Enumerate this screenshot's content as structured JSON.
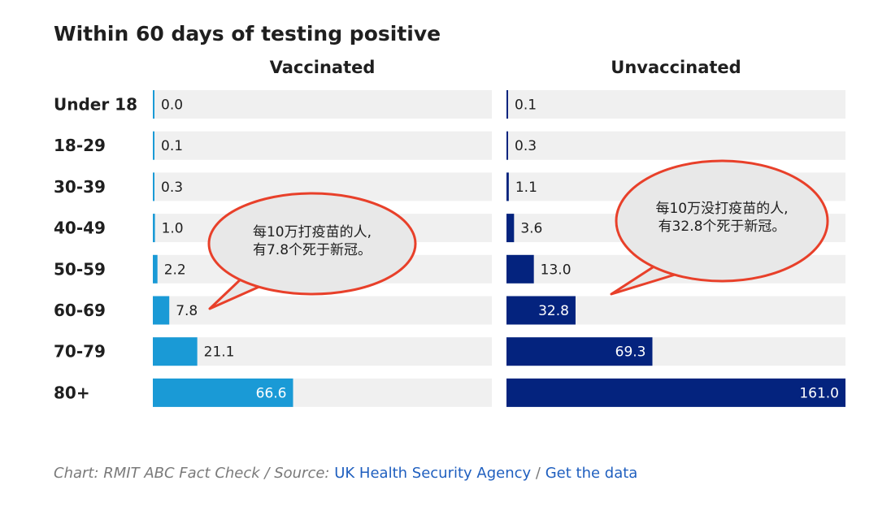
{
  "chart_data": {
    "type": "bar",
    "orientation": "horizontal",
    "title": "Within 60 days of testing positive",
    "categories": [
      "Under 18",
      "18-29",
      "30-39",
      "40-49",
      "50-59",
      "60-69",
      "70-79",
      "80+"
    ],
    "series": [
      {
        "name": "Vaccinated",
        "values": [
          0.0,
          0.1,
          0.3,
          1.0,
          2.2,
          7.8,
          21.1,
          66.6
        ],
        "labels": [
          "0.0",
          "0.1",
          "0.3",
          "1.0",
          "2.2",
          "7.8",
          "21.1",
          "66.6"
        ],
        "color": "#1a9ad6"
      },
      {
        "name": "Unvaccinated",
        "values": [
          0.1,
          0.3,
          1.1,
          3.6,
          13.0,
          32.8,
          69.3,
          161.0
        ],
        "labels": [
          "0.1",
          "0.3",
          "1.1",
          "3.6",
          "13.0",
          "32.8",
          "69.3",
          "161.0"
        ],
        "color": "#04237e"
      }
    ],
    "xlim": [
      0,
      161
    ],
    "background_bar_color": "#f0f0f0",
    "annotations": [
      {
        "panel": "Vaccinated",
        "category": "60-69",
        "lines": [
          "每10万打疫苗的人,",
          "有7.8个死于新冠。"
        ]
      },
      {
        "panel": "Unvaccinated",
        "category": "60-69",
        "lines": [
          "每10万没打疫苗的人,",
          "有32.8个死于新冠。"
        ]
      }
    ],
    "bubble_style": {
      "fill": "#e8e8e8",
      "stroke": "#e8402a"
    }
  },
  "footer": {
    "prefix": "Chart: RMIT ABC Fact Check / Source:",
    "source_link": "UK Health Security Agency",
    "separator": "/",
    "data_link": "Get the data"
  }
}
